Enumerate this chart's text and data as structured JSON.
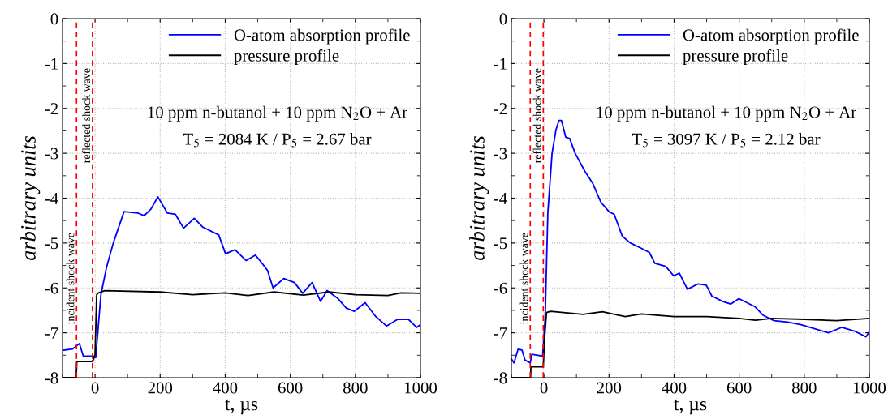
{
  "chart_data": [
    {
      "type": "line",
      "xlabel": "t, µs",
      "ylabel": "arbitrary units",
      "xlim": [
        -100,
        1000
      ],
      "ylim": [
        -8,
        0
      ],
      "xticks": [
        0,
        200,
        400,
        600,
        800,
        1000
      ],
      "yticks": [
        0,
        -1,
        -2,
        -3,
        -4,
        -5,
        -6,
        -7,
        -8
      ],
      "grid": true,
      "legend": "top right",
      "annotations": [
        "10 ppm n-butanol + 10 ppm N$_{2}$O + Ar",
        "T$_{5}$ = 2084 K / P$_{5}$ = 2.67 bar"
      ],
      "ref_lines": [
        {
          "axis": "x",
          "value": -57,
          "label": "incident shock wave",
          "color": "#ff0000",
          "line_style": "dashed"
        },
        {
          "axis": "x",
          "value": -8,
          "label": "reflected shock wave",
          "color": "#ff0000",
          "line_style": "dashed"
        }
      ],
      "series": [
        {
          "name": "O-atom absorption profile",
          "color": "#0000ff",
          "x": [
            -100,
            -69,
            -48,
            -36,
            -7,
            2,
            18,
            35,
            56,
            89,
            131,
            151,
            172,
            193,
            222,
            247,
            272,
            305,
            330,
            380,
            401,
            430,
            464,
            493,
            513,
            530,
            547,
            580,
            613,
            638,
            667,
            693,
            713,
            747,
            772,
            797,
            830,
            863,
            896,
            930,
            963,
            988,
            1000
          ],
          "values": [
            -7.39,
            -7.36,
            -7.24,
            -7.52,
            -7.52,
            -7.55,
            -6.15,
            -5.55,
            -5.0,
            -4.3,
            -4.33,
            -4.39,
            -4.24,
            -3.97,
            -4.33,
            -4.36,
            -4.67,
            -4.45,
            -4.64,
            -4.82,
            -5.24,
            -5.15,
            -5.39,
            -5.27,
            -5.45,
            -5.61,
            -6.0,
            -5.79,
            -5.88,
            -6.12,
            -5.88,
            -6.3,
            -6.06,
            -6.24,
            -6.45,
            -6.52,
            -6.33,
            -6.64,
            -6.85,
            -6.7,
            -6.7,
            -6.88,
            -6.82
          ]
        },
        {
          "name": "pressure profile",
          "color": "#000000",
          "x": [
            -100,
            -58,
            -56,
            -10,
            -5,
            0,
            5,
            10,
            30,
            200,
            300,
            400,
            470,
            550,
            640,
            720,
            800,
            900,
            940,
            1000
          ],
          "values": [
            -8,
            -8,
            -7.64,
            -7.64,
            -7.6,
            -7.48,
            -6.15,
            -6.11,
            -6.06,
            -6.09,
            -6.15,
            -6.11,
            -6.17,
            -6.09,
            -6.16,
            -6.09,
            -6.15,
            -6.17,
            -6.11,
            -6.12
          ]
        }
      ]
    },
    {
      "type": "line",
      "xlabel": "t, µs",
      "ylabel": "arbitrary units",
      "xlim": [
        -100,
        1000
      ],
      "ylim": [
        -8,
        0
      ],
      "xticks": [
        0,
        200,
        400,
        600,
        800,
        1000
      ],
      "yticks": [
        0,
        -1,
        -2,
        -3,
        -4,
        -5,
        -6,
        -7,
        -8
      ],
      "grid": true,
      "legend": "top right",
      "annotations": [
        "10 ppm n-butanol + 10 ppm N$_{2}$O + Ar",
        "T$_{5}$ = 3097 K / P$_{5}$ = 2.12 bar"
      ],
      "ref_lines": [
        {
          "axis": "x",
          "value": -42,
          "label": "incident shock wave",
          "color": "#ff0000",
          "line_style": "dashed"
        },
        {
          "axis": "x",
          "value": -2,
          "label": "reflected shock wave",
          "color": "#ff0000",
          "line_style": "dashed"
        }
      ],
      "series": [
        {
          "name": "O-atom absorption profile",
          "color": "#0000ff",
          "x": [
            -100,
            -92,
            -79,
            -67,
            -58,
            -42,
            -37,
            -4,
            4,
            12,
            25,
            37,
            46,
            54,
            67,
            79,
            96,
            125,
            150,
            175,
            200,
            216,
            241,
            266,
            300,
            324,
            341,
            374,
            399,
            416,
            441,
            474,
            499,
            516,
            549,
            574,
            599,
            624,
            649,
            674,
            707,
            749,
            790,
            832,
            874,
            915,
            957,
            990,
            1000
          ],
          "values": [
            -7.58,
            -7.67,
            -7.36,
            -7.39,
            -7.61,
            -7.67,
            -7.48,
            -7.52,
            -6.64,
            -4.33,
            -3.0,
            -2.48,
            -2.27,
            -2.27,
            -2.64,
            -2.67,
            -3.0,
            -3.39,
            -3.67,
            -4.09,
            -4.3,
            -4.36,
            -4.85,
            -5.0,
            -5.12,
            -5.21,
            -5.45,
            -5.52,
            -5.73,
            -5.67,
            -6.03,
            -5.91,
            -5.94,
            -6.18,
            -6.3,
            -6.36,
            -6.24,
            -6.33,
            -6.42,
            -6.61,
            -6.73,
            -6.76,
            -6.82,
            -6.91,
            -7.0,
            -6.88,
            -6.97,
            -7.09,
            -6.97
          ]
        },
        {
          "name": "pressure profile",
          "color": "#000000",
          "x": [
            -100,
            -41,
            -40,
            -2,
            2,
            8,
            20,
            60,
            120,
            180,
            250,
            300,
            400,
            500,
            600,
            650,
            700,
            800,
            900,
            1000
          ],
          "values": [
            -8,
            -8,
            -7.76,
            -7.76,
            -7.12,
            -6.55,
            -6.52,
            -6.55,
            -6.59,
            -6.53,
            -6.64,
            -6.58,
            -6.64,
            -6.64,
            -6.68,
            -6.72,
            -6.68,
            -6.7,
            -6.73,
            -6.68
          ]
        }
      ]
    }
  ]
}
